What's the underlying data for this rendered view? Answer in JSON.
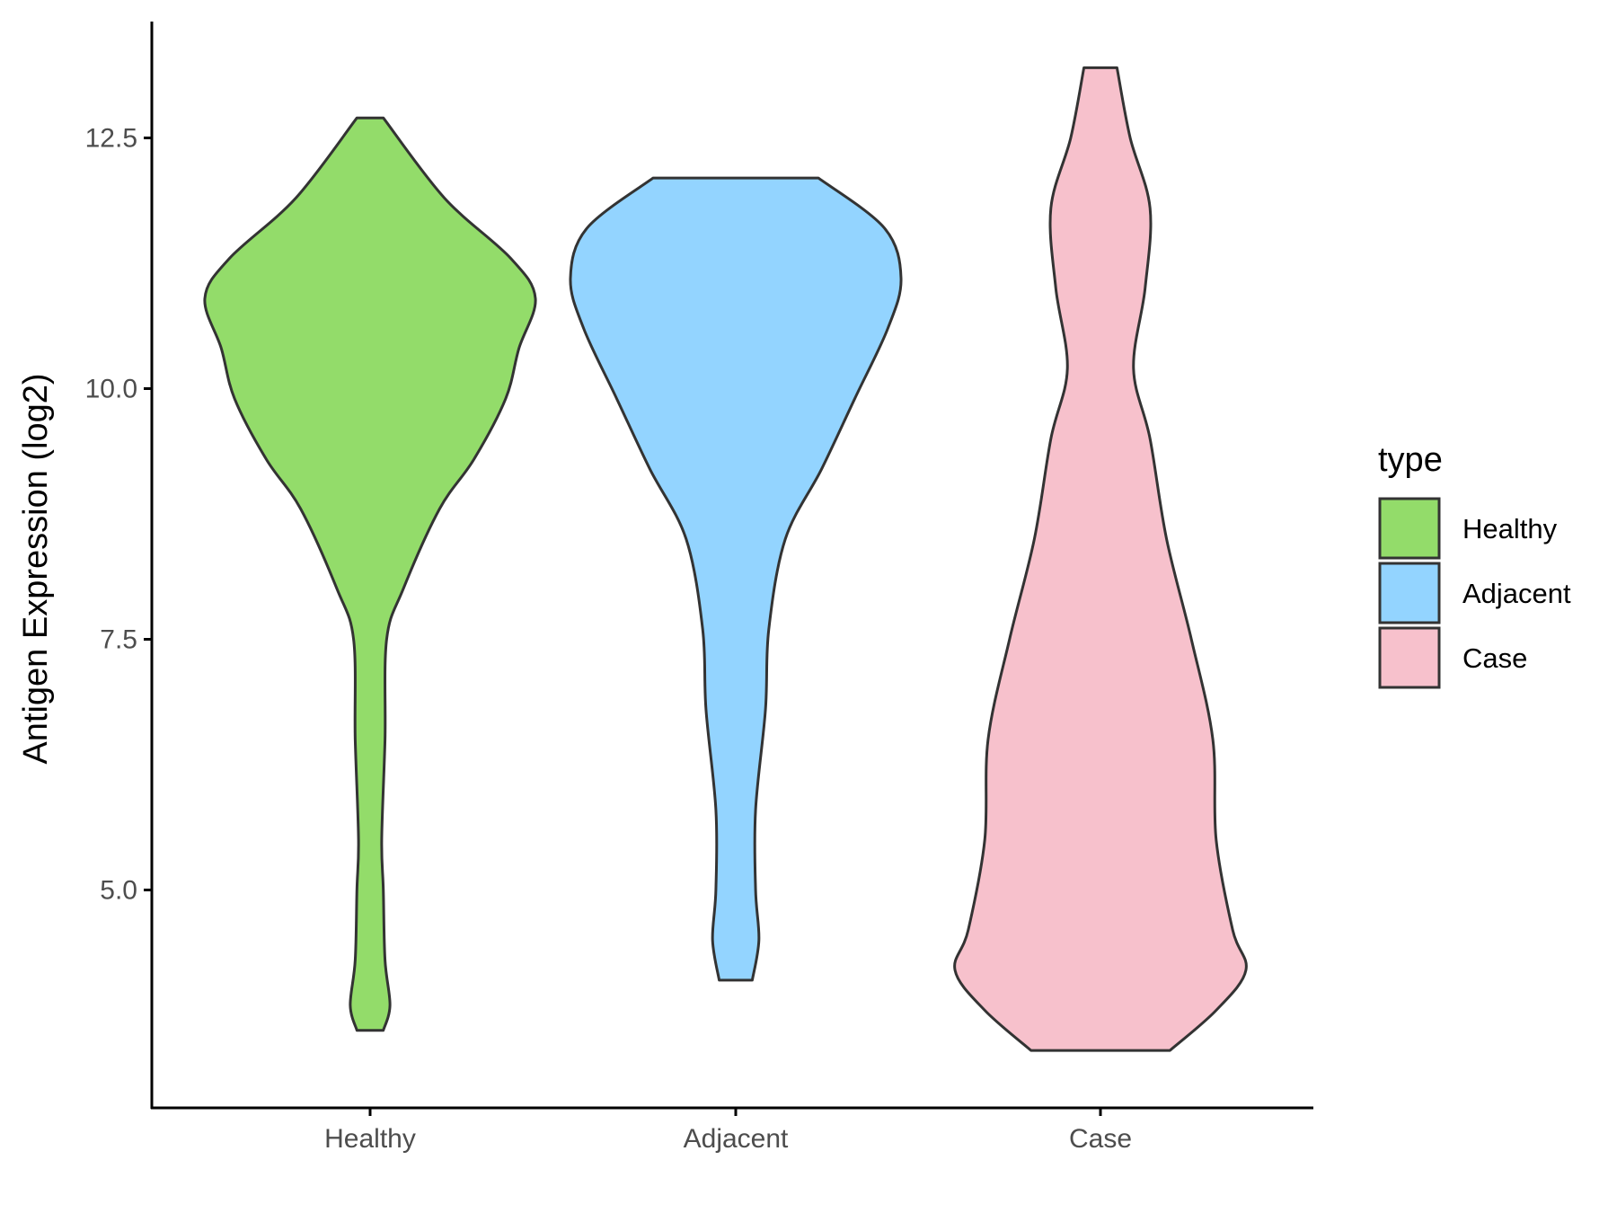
{
  "chart_data": {
    "type": "violin",
    "categories": [
      "Healthy",
      "Adjacent",
      "Case"
    ],
    "ylabel": "Antigen Expression (log2)",
    "xlabel": "",
    "y_ticks": [
      5.0,
      7.5,
      10.0,
      12.5
    ],
    "y_tick_labels": [
      "5.0",
      "7.5",
      "10.0",
      "12.5"
    ],
    "ylim": [
      3.0,
      13.6
    ],
    "grid": false,
    "legend": {
      "title": "type",
      "position": "right",
      "items": [
        {
          "label": "Healthy",
          "color": "#93DC6A"
        },
        {
          "label": "Adjacent",
          "color": "#93D4FF"
        },
        {
          "label": "Case",
          "color": "#F7C1CC"
        }
      ]
    },
    "series": [
      {
        "category": "Healthy",
        "color": "#93DC6A",
        "range": [
          3.6,
          12.7
        ],
        "profile": [
          [
            3.6,
            0.08
          ],
          [
            3.85,
            0.12
          ],
          [
            4.3,
            0.09
          ],
          [
            5.0,
            0.08
          ],
          [
            5.5,
            0.07
          ],
          [
            6.5,
            0.09
          ],
          [
            7.5,
            0.1
          ],
          [
            8.0,
            0.2
          ],
          [
            8.8,
            0.42
          ],
          [
            9.3,
            0.63
          ],
          [
            9.9,
            0.82
          ],
          [
            10.4,
            0.9
          ],
          [
            10.9,
            1.0
          ],
          [
            11.3,
            0.85
          ],
          [
            11.9,
            0.45
          ],
          [
            12.7,
            0.08
          ]
        ]
      },
      {
        "category": "Adjacent",
        "color": "#93D4FF",
        "range": [
          4.1,
          12.1
        ],
        "profile": [
          [
            4.1,
            0.1
          ],
          [
            4.5,
            0.14
          ],
          [
            5.0,
            0.12
          ],
          [
            5.8,
            0.12
          ],
          [
            6.8,
            0.18
          ],
          [
            7.6,
            0.2
          ],
          [
            8.5,
            0.3
          ],
          [
            9.2,
            0.52
          ],
          [
            9.9,
            0.72
          ],
          [
            10.6,
            0.92
          ],
          [
            11.1,
            1.0
          ],
          [
            11.6,
            0.9
          ],
          [
            12.1,
            0.5
          ]
        ]
      },
      {
        "category": "Case",
        "color": "#F7C1CC",
        "range": [
          3.4,
          13.2
        ],
        "profile": [
          [
            3.4,
            0.42
          ],
          [
            3.8,
            0.7
          ],
          [
            4.2,
            0.88
          ],
          [
            4.6,
            0.8
          ],
          [
            5.5,
            0.7
          ],
          [
            6.5,
            0.68
          ],
          [
            7.5,
            0.55
          ],
          [
            8.5,
            0.4
          ],
          [
            9.5,
            0.3
          ],
          [
            10.2,
            0.2
          ],
          [
            11.0,
            0.27
          ],
          [
            11.8,
            0.3
          ],
          [
            12.5,
            0.18
          ],
          [
            13.2,
            0.1
          ]
        ]
      }
    ]
  }
}
